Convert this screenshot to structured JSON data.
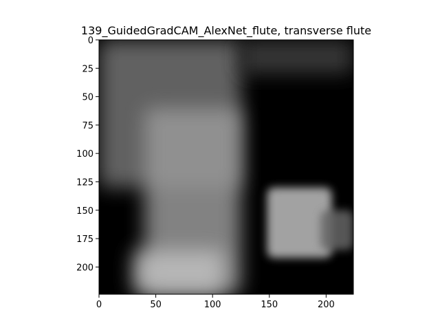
{
  "chart_data": {
    "type": "heatmap",
    "title": "139_GuidedGradCAM_AlexNet_flute, transverse flute",
    "xlabel": "",
    "ylabel": "",
    "xlim": [
      0,
      224
    ],
    "ylim": [
      224,
      0
    ],
    "x_ticks": [
      0,
      50,
      100,
      150,
      200
    ],
    "y_ticks": [
      0,
      25,
      50,
      75,
      100,
      125,
      150,
      175,
      200
    ],
    "grid": false,
    "legend": "none",
    "colormap": "grayscale saliency overlay on black background",
    "background_color": "#000000",
    "bright_regions": [
      {
        "label": "upper-left grey haze",
        "x": [
          0,
          125
        ],
        "y": [
          0,
          130
        ],
        "intensity": 0.45
      },
      {
        "label": "central figure",
        "x": [
          40,
          125
        ],
        "y": [
          60,
          224
        ],
        "intensity": 0.6
      },
      {
        "label": "bottom figure base",
        "x": [
          30,
          110
        ],
        "y": [
          185,
          224
        ],
        "intensity": 0.75
      },
      {
        "label": "dog face patch",
        "x": [
          148,
          205
        ],
        "y": [
          130,
          192
        ],
        "intensity": 0.75
      },
      {
        "label": "right edge patch",
        "x": [
          195,
          224
        ],
        "y": [
          150,
          185
        ],
        "intensity": 0.4
      },
      {
        "label": "upper-right faint haze",
        "x": [
          125,
          224
        ],
        "y": [
          0,
          30
        ],
        "intensity": 0.25
      }
    ]
  }
}
